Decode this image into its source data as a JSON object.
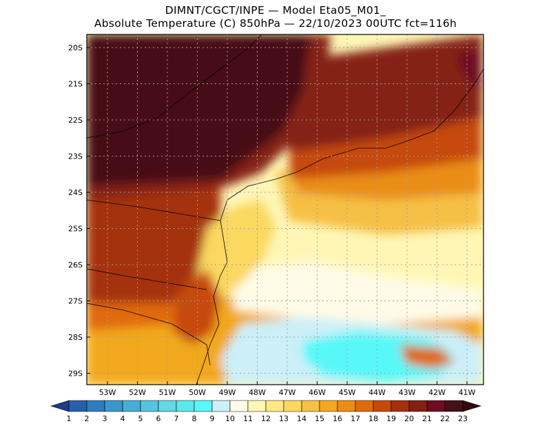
{
  "header": {
    "line1": "DIMNT/CGCT/INPE —  Model Eta05_M01_",
    "line2": "Absolute Temperature (C) 850hPa —  22/10/2023 00UTC fct=116h"
  },
  "map": {
    "lat_labels": [
      "20S",
      "21S",
      "22S",
      "23S",
      "24S",
      "25S",
      "26S",
      "27S",
      "28S",
      "29S"
    ],
    "lon_labels": [
      "53W",
      "52W",
      "51W",
      "50W",
      "49W",
      "48W",
      "47W",
      "46W",
      "45W",
      "44W",
      "43W",
      "42W",
      "41W"
    ]
  },
  "colorbar": {
    "labels": [
      "1",
      "2",
      "3",
      "4",
      "5",
      "6",
      "7",
      "8",
      "9",
      "10",
      "11",
      "12",
      "13",
      "14",
      "15",
      "16",
      "17",
      "18",
      "19",
      "20",
      "21",
      "22",
      "23"
    ],
    "colors": [
      "#203a8c",
      "#2660a8",
      "#2c7ec0",
      "#3897cc",
      "#44aed6",
      "#55c4de",
      "#66d7e6",
      "#5ae8ec",
      "#58f8f8",
      "#cceff8",
      "#fffbe6",
      "#fff6b6",
      "#ffe985",
      "#fbd860",
      "#f5c045",
      "#f2a81f",
      "#ea8d12",
      "#e06b0c",
      "#c6490a",
      "#a4300d",
      "#852015",
      "#6e0c20",
      "#461116",
      "#330a0e"
    ]
  }
}
